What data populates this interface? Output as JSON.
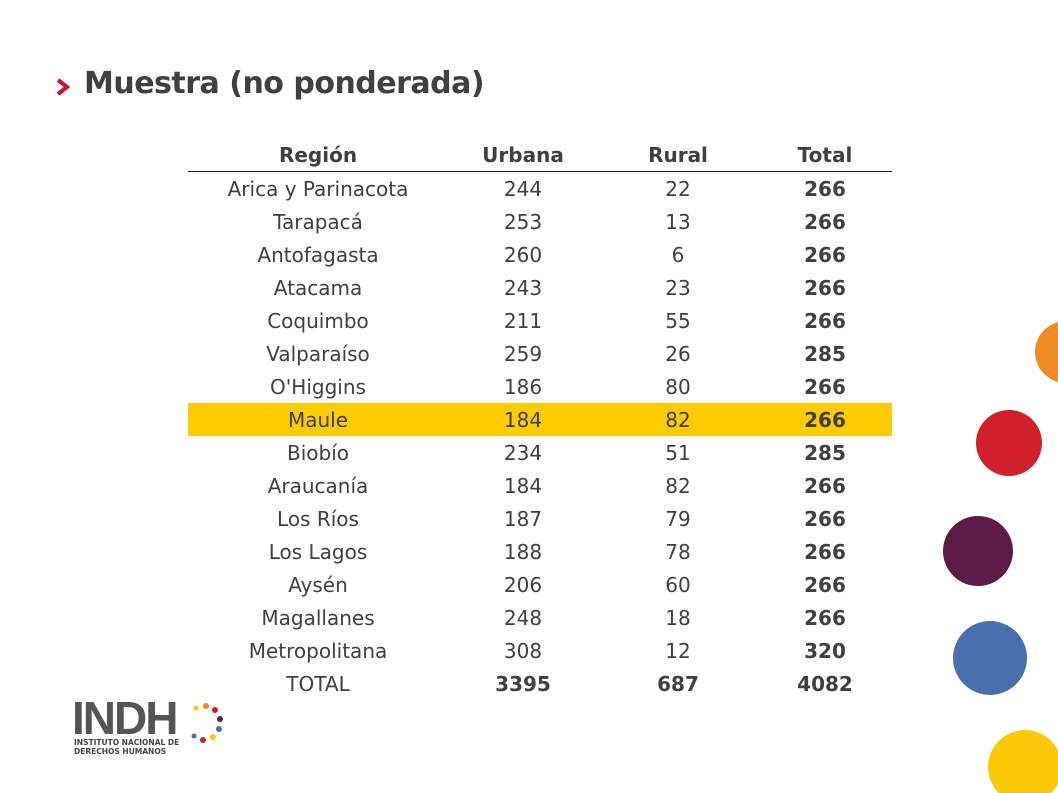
{
  "header": {
    "title": "Muestra (no ponderada)"
  },
  "table": {
    "columns": [
      "Región",
      "Urbana",
      "Rural",
      "Total"
    ],
    "rows": [
      [
        "Arica y Parinacota",
        244,
        22,
        266
      ],
      [
        "Tarapacá",
        253,
        13,
        266
      ],
      [
        "Antofagasta",
        260,
        6,
        266
      ],
      [
        "Atacama",
        243,
        23,
        266
      ],
      [
        "Coquimbo",
        211,
        55,
        266
      ],
      [
        "Valparaíso",
        259,
        26,
        285
      ],
      [
        "O'Higgins",
        186,
        80,
        266
      ],
      [
        "Maule",
        184,
        82,
        266
      ],
      [
        "Biobío",
        234,
        51,
        285
      ],
      [
        "Araucanía",
        184,
        82,
        266
      ],
      [
        "Los Ríos",
        187,
        79,
        266
      ],
      [
        "Los Lagos",
        188,
        78,
        266
      ],
      [
        "Aysén",
        206,
        60,
        266
      ],
      [
        "Magallanes",
        248,
        18,
        266
      ],
      [
        "Metropolitana",
        308,
        12,
        320
      ]
    ],
    "total_row": [
      "TOTAL",
      3395,
      687,
      4082
    ]
  },
  "logo": {
    "name": "INDH",
    "line1": "INSTITUTO NACIONAL DE",
    "line2": "DERECHOS HUMANOS"
  }
}
